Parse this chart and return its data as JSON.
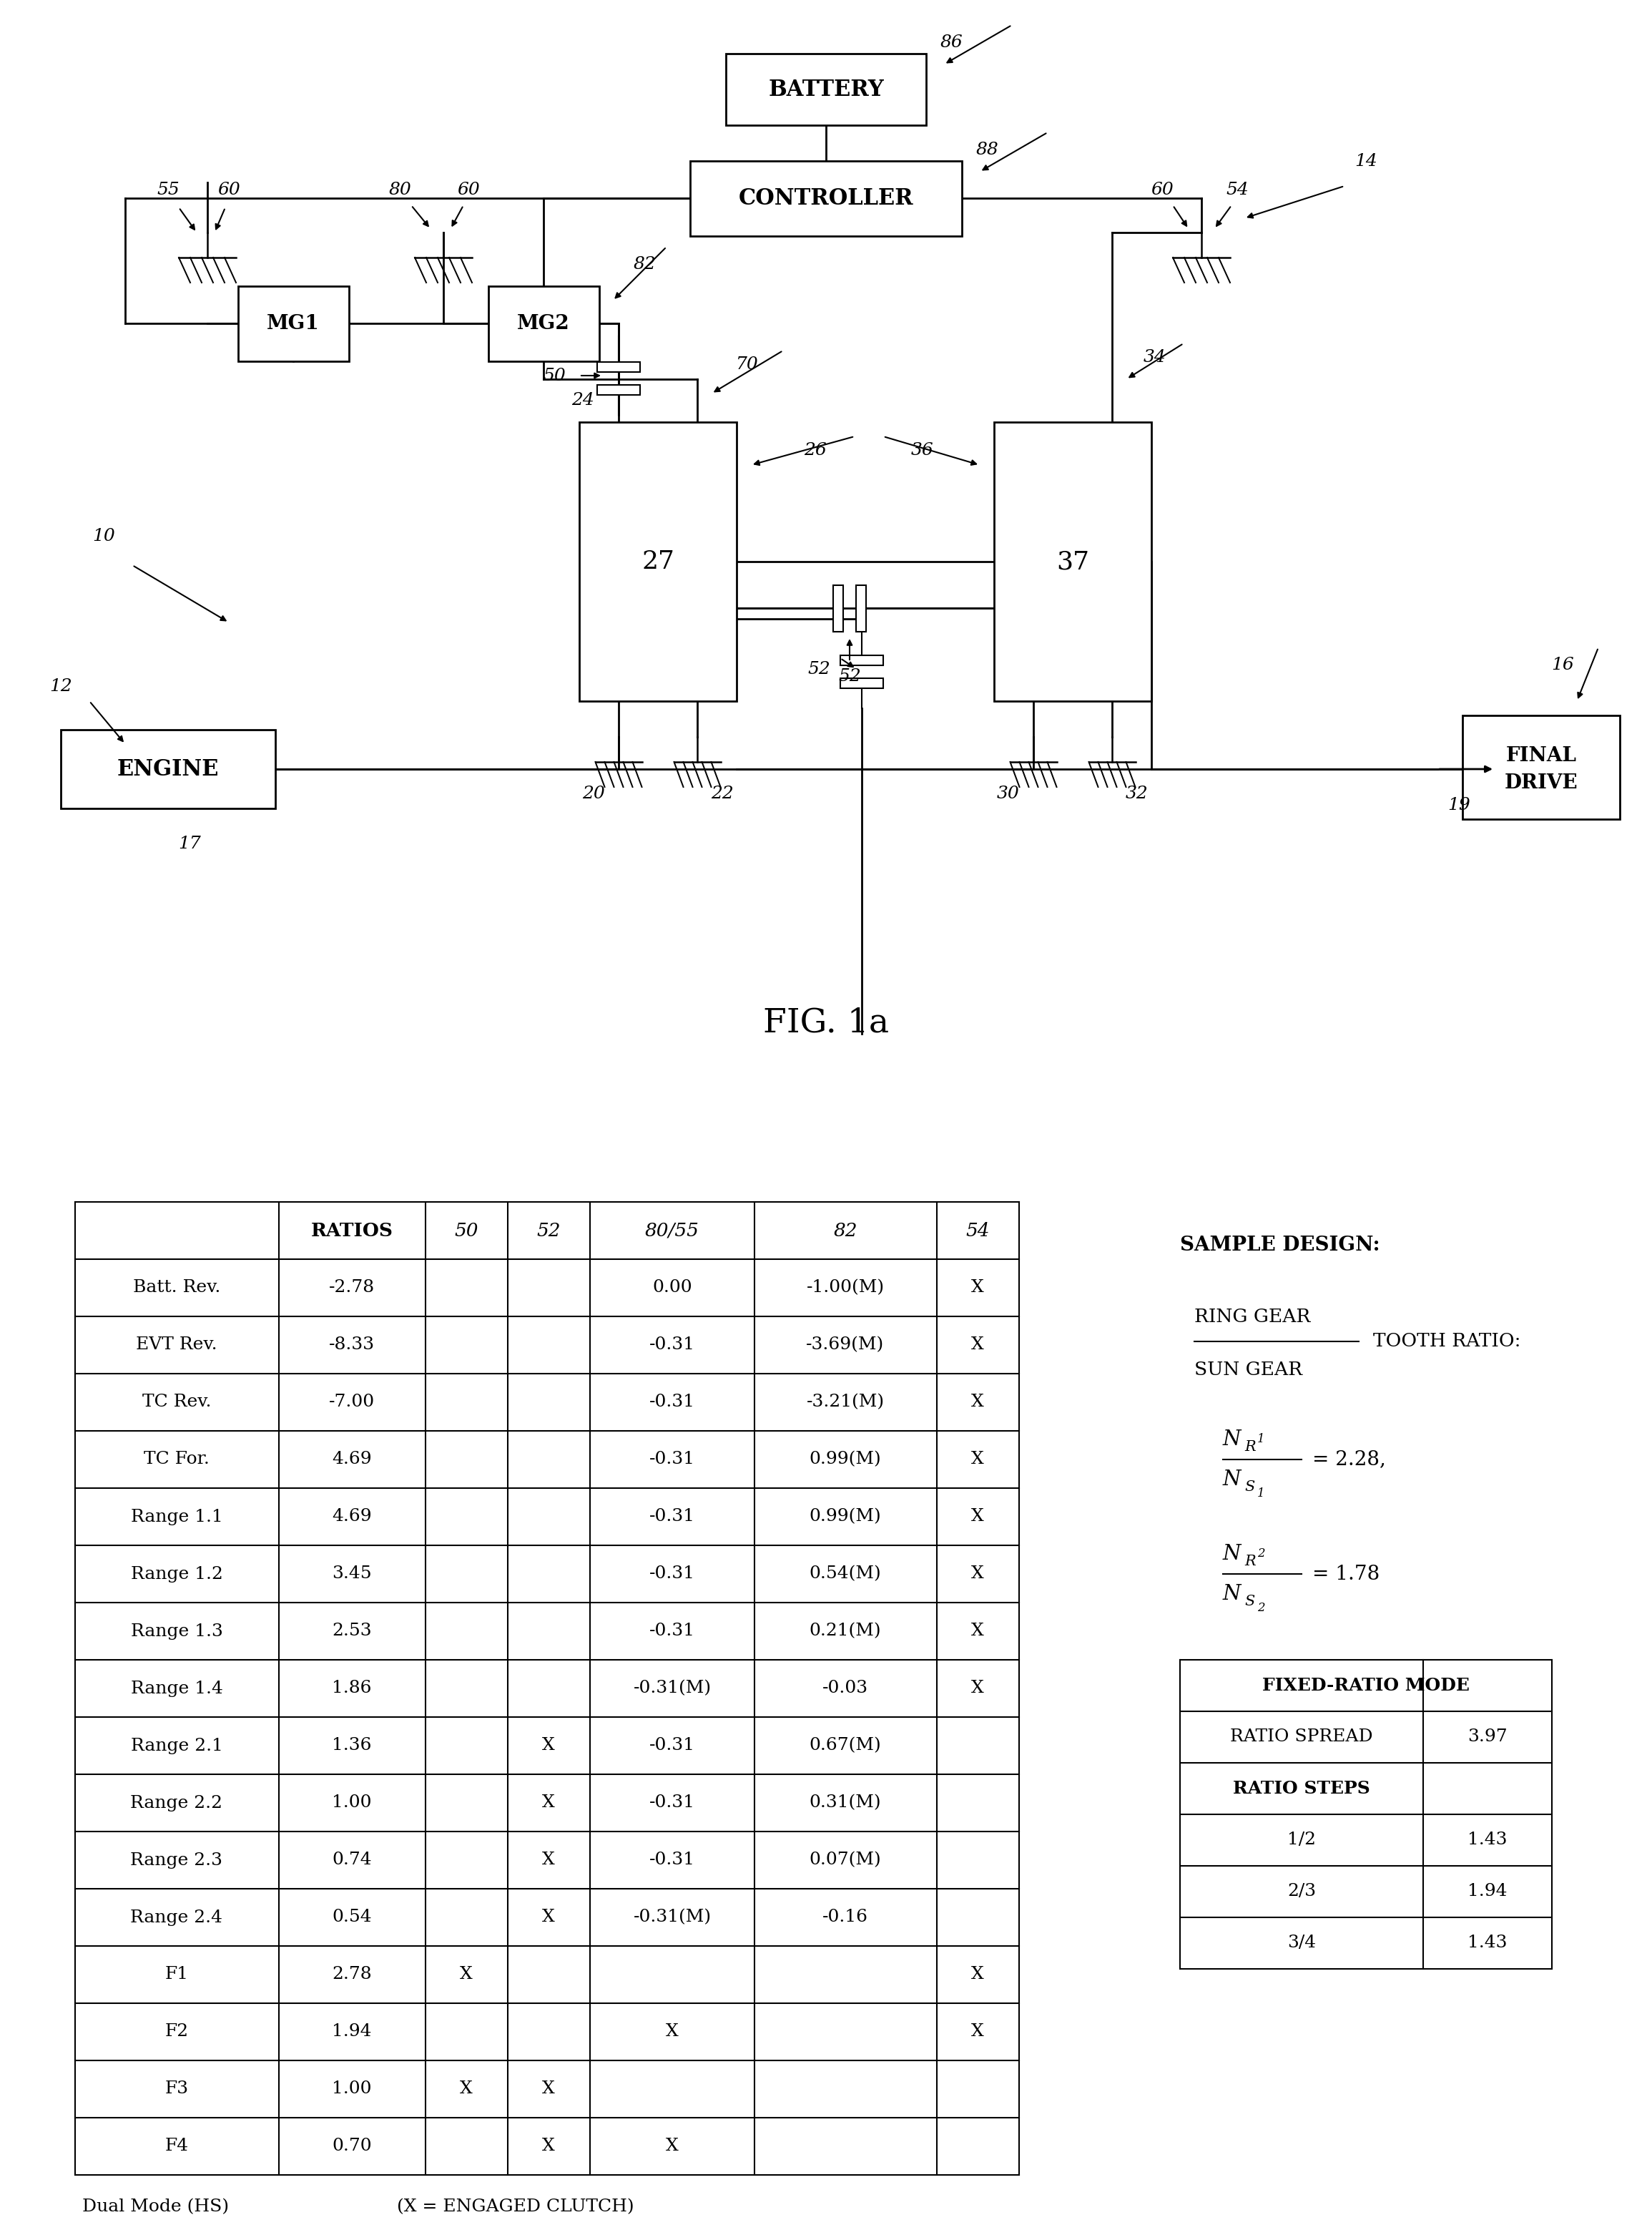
{
  "fig_width": 23.1,
  "fig_height": 31.1,
  "bg_color": "#ffffff",
  "table_rows": [
    [
      "",
      "RATIOS",
      "50",
      "52",
      "80/55",
      "82",
      "54"
    ],
    [
      "Batt. Rev.",
      "-2.78",
      "",
      "",
      "0.00",
      "-1.00(M)",
      "X"
    ],
    [
      "EVT Rev.",
      "-8.33",
      "",
      "",
      "-0.31",
      "-3.69(M)",
      "X"
    ],
    [
      "TC Rev.",
      "-7.00",
      "",
      "",
      "-0.31",
      "-3.21(M)",
      "X"
    ],
    [
      "TC For.",
      "4.69",
      "",
      "",
      "-0.31",
      "0.99(M)",
      "X"
    ],
    [
      "Range 1.1",
      "4.69",
      "",
      "",
      "-0.31",
      "0.99(M)",
      "X"
    ],
    [
      "Range 1.2",
      "3.45",
      "",
      "",
      "-0.31",
      "0.54(M)",
      "X"
    ],
    [
      "Range 1.3",
      "2.53",
      "",
      "",
      "-0.31",
      "0.21(M)",
      "X"
    ],
    [
      "Range 1.4",
      "1.86",
      "",
      "",
      "-0.31(M)",
      "-0.03",
      "X"
    ],
    [
      "Range 2.1",
      "1.36",
      "",
      "X",
      "-0.31",
      "0.67(M)",
      ""
    ],
    [
      "Range 2.2",
      "1.00",
      "",
      "X",
      "-0.31",
      "0.31(M)",
      ""
    ],
    [
      "Range 2.3",
      "0.74",
      "",
      "X",
      "-0.31",
      "0.07(M)",
      ""
    ],
    [
      "Range 2.4",
      "0.54",
      "",
      "X",
      "-0.31(M)",
      "-0.16",
      ""
    ],
    [
      "F1",
      "2.78",
      "X",
      "",
      "",
      "",
      "X"
    ],
    [
      "F2",
      "1.94",
      "",
      "",
      "X",
      "",
      "X"
    ],
    [
      "F3",
      "1.00",
      "X",
      "X",
      "",
      "",
      ""
    ],
    [
      "F4",
      "0.70",
      "",
      "X",
      "X",
      "",
      ""
    ]
  ],
  "fixed_ratio_table": [
    [
      "FIXED-RATIO MODE",
      ""
    ],
    [
      "RATIO SPREAD",
      "3.97"
    ],
    [
      "RATIO STEPS",
      ""
    ],
    [
      "1/2",
      "1.43"
    ],
    [
      "2/3",
      "1.94"
    ],
    [
      "3/4",
      "1.43"
    ]
  ],
  "footnote1": "Dual Mode (HS)",
  "footnote2": "(X = ENGAGED CLUTCH)"
}
